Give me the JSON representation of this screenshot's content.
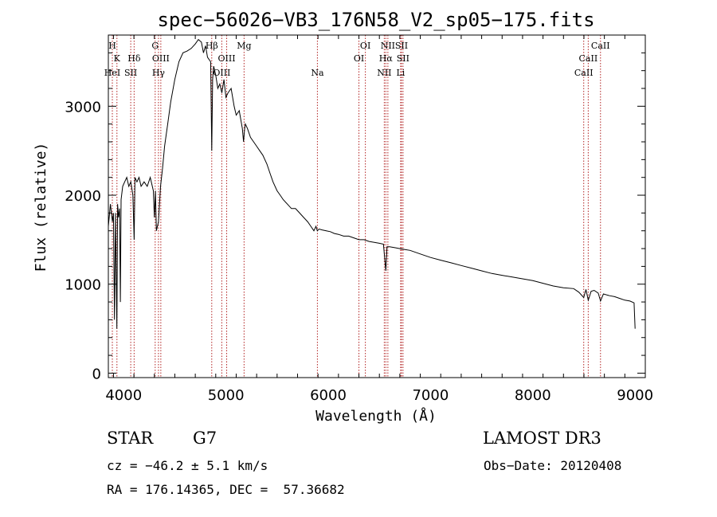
{
  "chart_data": {
    "type": "line",
    "title": "spec−56026−VB3_176N58_V2_sp05−175.fits",
    "xlabel": "Wavelength (Å)",
    "ylabel": "Flux (relative)",
    "xlim": [
      3850,
      9100
    ],
    "ylim": [
      -50,
      3800
    ],
    "xticks": [
      4000,
      5000,
      6000,
      7000,
      8000,
      9000
    ],
    "xtick_labels": [
      "4000",
      "5000",
      "6000",
      "7000",
      "8000",
      "9000"
    ],
    "yticks": [
      0,
      1000,
      2000,
      3000
    ],
    "ytick_labels": [
      "0",
      "1000",
      "2000",
      "3000"
    ],
    "line_color": "#000000",
    "marker_color": "#b22222",
    "spectrum": {
      "x": [
        3850,
        3870,
        3890,
        3900,
        3910,
        3920,
        3933,
        3940,
        3950,
        3960,
        3968,
        3975,
        3990,
        4010,
        4030,
        4050,
        4070,
        4090,
        4102,
        4110,
        4130,
        4150,
        4170,
        4200,
        4230,
        4260,
        4290,
        4300,
        4310,
        4320,
        4340,
        4360,
        4380,
        4400,
        4430,
        4460,
        4500,
        4540,
        4580,
        4620,
        4660,
        4700,
        4730,
        4760,
        4780,
        4800,
        4820,
        4850,
        4861,
        4870,
        4880,
        4900,
        4920,
        4940,
        4960,
        4980,
        5000,
        5020,
        5050,
        5080,
        5100,
        5130,
        5160,
        5172,
        5183,
        5190,
        5210,
        5240,
        5270,
        5300,
        5330,
        5360,
        5400,
        5430,
        5460,
        5500,
        5530,
        5560,
        5600,
        5640,
        5680,
        5720,
        5760,
        5800,
        5830,
        5860,
        5880,
        5893,
        5910,
        5940,
        5980,
        6020,
        6060,
        6100,
        6150,
        6200,
        6250,
        6300,
        6350,
        6400,
        6450,
        6500,
        6540,
        6563,
        6575,
        6600,
        6650,
        6700,
        6750,
        6800,
        6900,
        7000,
        7100,
        7200,
        7300,
        7400,
        7500,
        7600,
        7700,
        7800,
        7900,
        8000,
        8100,
        8200,
        8300,
        8400,
        8450,
        8498,
        8520,
        8542,
        8570,
        8600,
        8640,
        8662,
        8690,
        8750,
        8800,
        8850,
        8900,
        8950,
        8990,
        9000
      ],
      "y": [
        1650,
        1900,
        1700,
        1800,
        600,
        1800,
        500,
        1900,
        1750,
        1850,
        800,
        1950,
        2100,
        2150,
        2200,
        2100,
        2150,
        2000,
        1500,
        2200,
        2150,
        2200,
        2100,
        2150,
        2100,
        2200,
        2050,
        1750,
        2050,
        1600,
        1700,
        2100,
        2300,
        2550,
        2800,
        3050,
        3300,
        3500,
        3600,
        3620,
        3650,
        3700,
        3750,
        3720,
        3600,
        3680,
        3550,
        3500,
        2500,
        3300,
        3450,
        3350,
        3200,
        3250,
        3150,
        3300,
        3100,
        3150,
        3200,
        3000,
        2900,
        2950,
        2750,
        2600,
        2750,
        2800,
        2750,
        2650,
        2600,
        2550,
        2500,
        2450,
        2350,
        2250,
        2150,
        2050,
        2000,
        1950,
        1900,
        1850,
        1850,
        1800,
        1750,
        1700,
        1650,
        1600,
        1650,
        1600,
        1620,
        1610,
        1600,
        1590,
        1570,
        1560,
        1540,
        1540,
        1520,
        1500,
        1500,
        1480,
        1470,
        1460,
        1450,
        1150,
        1420,
        1420,
        1410,
        1400,
        1390,
        1380,
        1340,
        1300,
        1270,
        1240,
        1210,
        1180,
        1150,
        1120,
        1100,
        1080,
        1060,
        1040,
        1010,
        980,
        960,
        950,
        910,
        850,
        940,
        820,
        920,
        930,
        900,
        810,
        890,
        870,
        860,
        840,
        820,
        810,
        790,
        500
      ]
    },
    "lines": [
      {
        "label": "H",
        "wl": 3889,
        "row": 1
      },
      {
        "label": "K",
        "wl": 3934,
        "row": 2
      },
      {
        "label": "HeI",
        "wl": 3889,
        "row": 3
      },
      {
        "label": "SII",
        "wl": 4069,
        "row": 3
      },
      {
        "label": "Hδ",
        "wl": 4102,
        "row": 2
      },
      {
        "label": "G",
        "wl": 4308,
        "row": 1
      },
      {
        "label": "OIII",
        "wl": 4363,
        "row": 2
      },
      {
        "label": "Hγ",
        "wl": 4340,
        "row": 3
      },
      {
        "label": "Hβ",
        "wl": 4861,
        "row": 1
      },
      {
        "label": "OIII",
        "wl": 5007,
        "row": 2
      },
      {
        "label": "OIII",
        "wl": 4959,
        "row": 3
      },
      {
        "label": "Mg",
        "wl": 5177,
        "row": 1
      },
      {
        "label": "Na",
        "wl": 5894,
        "row": 3
      },
      {
        "label": "OI",
        "wl": 6363,
        "row": 1
      },
      {
        "label": "OI",
        "wl": 6300,
        "row": 2
      },
      {
        "label": "NII",
        "wl": 6583,
        "row": 1
      },
      {
        "label": "SII",
        "wl": 6716,
        "row": 1
      },
      {
        "label": "Hα",
        "wl": 6563,
        "row": 2
      },
      {
        "label": "SII",
        "wl": 6731,
        "row": 2
      },
      {
        "label": "NII",
        "wl": 6548,
        "row": 3
      },
      {
        "label": "Li",
        "wl": 6708,
        "row": 3
      },
      {
        "label": "CaII",
        "wl": 8662,
        "row": 1
      },
      {
        "label": "CaII",
        "wl": 8542,
        "row": 2
      },
      {
        "label": "CaII",
        "wl": 8498,
        "row": 3
      }
    ]
  },
  "info": {
    "class_label": "STAR",
    "subclass": "G7",
    "survey": "LAMOST DR3",
    "cz": "cz = −46.2 ± 5.1 km/s",
    "obs_date": "Obs−Date: 20120408",
    "coords": "RA = 176.14365, DEC =  57.36682"
  }
}
